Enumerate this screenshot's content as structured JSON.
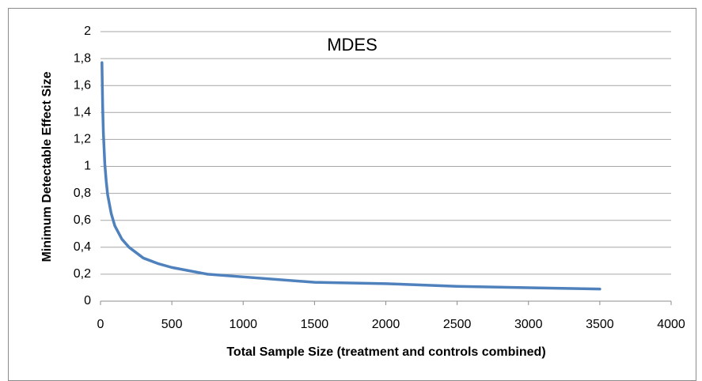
{
  "chart_data": {
    "type": "line",
    "title": "MDES",
    "x_label": "Total Sample Size (treatment and controls combined)",
    "y_label": "Minimum Detectable Effect Size",
    "x": [
      10,
      15,
      20,
      30,
      40,
      50,
      75,
      100,
      150,
      200,
      300,
      400,
      500,
      750,
      1000,
      1500,
      2000,
      2500,
      3000,
      3500
    ],
    "series": [
      {
        "name": "MDES",
        "color": "#4f81bd",
        "values": [
          1.77,
          1.45,
          1.25,
          1.02,
          0.89,
          0.79,
          0.65,
          0.56,
          0.46,
          0.4,
          0.32,
          0.28,
          0.25,
          0.2,
          0.18,
          0.14,
          0.13,
          0.11,
          0.1,
          0.09
        ]
      }
    ],
    "xlim": [
      0,
      4000
    ],
    "xticks": [
      0,
      500,
      1000,
      1500,
      2000,
      2500,
      3000,
      3500,
      4000
    ],
    "ylim": [
      0,
      2
    ],
    "yticks": [
      0,
      {
        "value": 0.2,
        "label": "0,2"
      },
      {
        "value": 0.4,
        "label": "0,4"
      },
      {
        "value": 0.6,
        "label": "0,6"
      },
      {
        "value": 0.8,
        "label": "0,8"
      },
      1,
      {
        "value": 1.2,
        "label": "1,2"
      },
      {
        "value": 1.4,
        "label": "1,4"
      },
      {
        "value": 1.6,
        "label": "1,6"
      },
      {
        "value": 1.8,
        "label": "1,8"
      },
      2
    ],
    "grid": true
  }
}
